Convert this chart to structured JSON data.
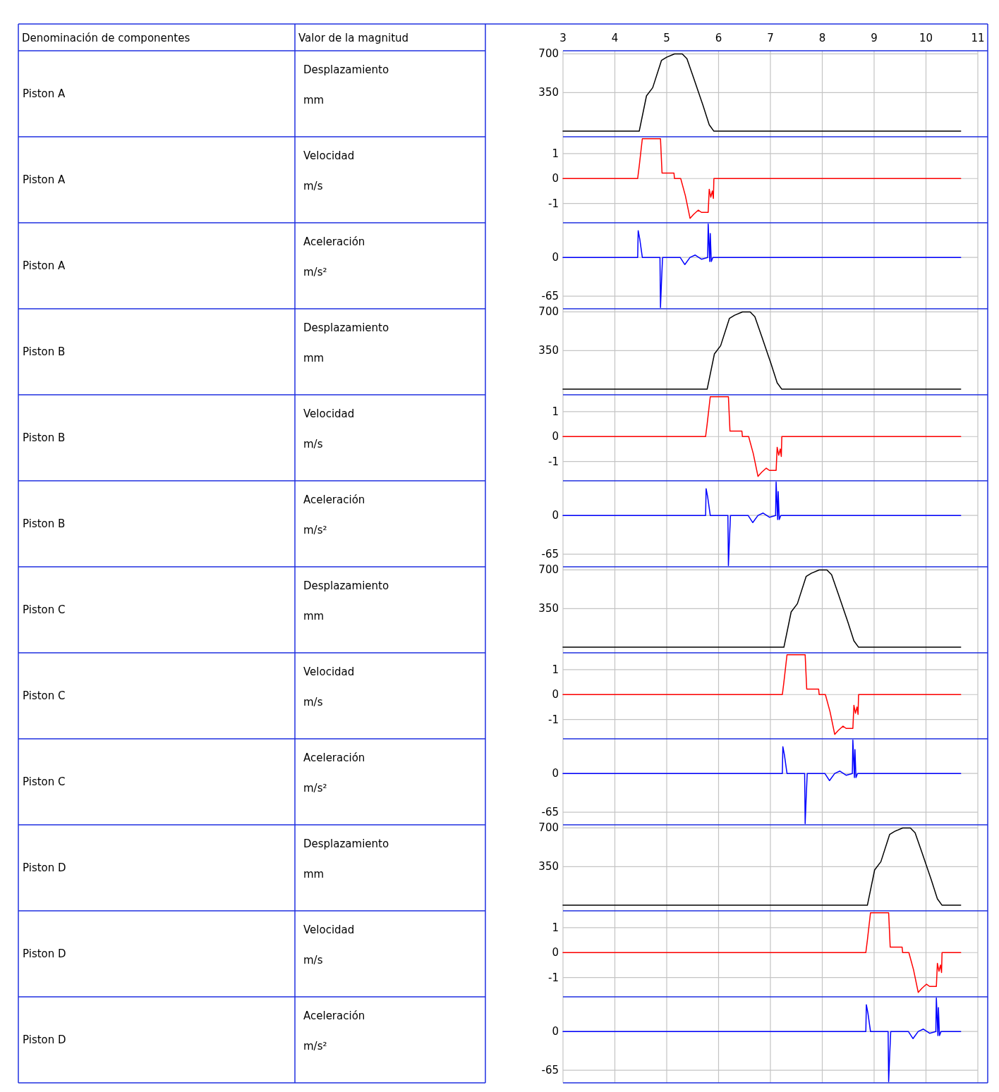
{
  "chart_data": [
    {
      "type": "other",
      "annotations": [
        "Denominación de componentes",
        "Valor de la magnitud",
        "Piston A",
        "Desplazamiento",
        "Piston A",
        "Velocidad",
        "Piston A",
        "Aceleración",
        "Piston B",
        "Desplazamiento",
        "Piston B",
        "Velocidad",
        "Piston B",
        "Aceleración",
        "Piston C",
        "Desplazamiento",
        "Piston C",
        "Velocidad",
        "Piston C",
        "Aceleración",
        "Piston D",
        "Desplazamiento",
        "Piston D",
        "Velocidad",
        "Piston D",
        "Aceleración"
      ]
    },
    {
      "type": "line",
      "ylabel": "mm",
      "xlim": [
        3,
        11
      ],
      "xticks": [
        3,
        4,
        5,
        6,
        7,
        8,
        9,
        10,
        11
      ],
      "ylim": [
        -44,
        722
      ],
      "yticks": [
        350,
        700
      ],
      "grid": true,
      "series": [
        {
          "color": "#000000",
          "x": [
            3,
            4.47,
            4.61,
            4.73,
            4.9,
            5.0,
            5.15,
            5.3,
            5.39,
            5.52,
            5.7,
            5.82,
            5.91,
            10.67
          ],
          "values": [
            0,
            0,
            320,
            394,
            642,
            670,
            700,
            700,
            656,
            481,
            233,
            58,
            0,
            0
          ]
        }
      ]
    },
    {
      "type": "line",
      "ylabel": "m/s",
      "xlim": [
        3,
        11
      ],
      "xticks": [
        3,
        4,
        5,
        6,
        7,
        8,
        9,
        10,
        11
      ],
      "ylim": [
        -1.75,
        1.65
      ],
      "yticks": [
        -1,
        0,
        1
      ],
      "grid": true,
      "tick_labels": "y",
      "series": [
        {
          "color": "#ff0000",
          "x": [
            3,
            4.44,
            4.47,
            4.53,
            4.88,
            4.91,
            5.14,
            5.15,
            5.27,
            5.36,
            5.45,
            5.52,
            5.61,
            5.67,
            5.8,
            5.82,
            5.85,
            5.88,
            5.9,
            5.91,
            10.67
          ],
          "values": [
            0,
            0,
            0.5,
            1.6,
            1.6,
            0.22,
            0.22,
            0,
            0,
            -0.69,
            -1.6,
            -1.44,
            -1.27,
            -1.36,
            -1.36,
            -0.43,
            -0.75,
            -0.5,
            -0.8,
            0,
            0
          ]
        }
      ]
    },
    {
      "type": "line",
      "ylabel": "m/s²",
      "xlim": [
        3,
        11
      ],
      "xticks": [
        3,
        4,
        5,
        6,
        7,
        8,
        9,
        10,
        11
      ],
      "ylim": [
        -85,
        57
      ],
      "yticks": [
        -65,
        0
      ],
      "grid": true,
      "tick_labels": "y",
      "series": [
        {
          "color": "#0000ff",
          "x": [
            3,
            4.44,
            4.45,
            4.48,
            4.53,
            4.87,
            4.88,
            4.9,
            4.92,
            5.26,
            5.35,
            5.45,
            5.55,
            5.67,
            5.79,
            5.8,
            5.83,
            5.84,
            5.86,
            5.89,
            10.67
          ],
          "values": [
            0,
            0,
            45,
            31,
            0,
            0,
            -84,
            -40,
            0,
            0,
            -12,
            0,
            4,
            -3,
            0,
            56,
            -7,
            40,
            -7,
            0,
            0
          ]
        }
      ]
    },
    {
      "type": "line",
      "ylabel": "mm",
      "xlim": [
        3,
        11
      ],
      "xticks": [
        3,
        4,
        5,
        6,
        7,
        8,
        9,
        10,
        11
      ],
      "ylim": [
        -44,
        722
      ],
      "yticks": [
        350,
        700
      ],
      "grid": true,
      "tick_labels": "y",
      "series": [
        {
          "color": "#000000",
          "x": [
            3,
            5.78,
            5.92,
            6.04,
            6.21,
            6.31,
            6.46,
            6.61,
            6.7,
            6.83,
            7.01,
            7.13,
            7.22,
            10.67
          ],
          "values": [
            0,
            0,
            320,
            394,
            642,
            670,
            700,
            700,
            656,
            481,
            233,
            58,
            0,
            0
          ]
        }
      ]
    },
    {
      "type": "line",
      "ylabel": "m/s",
      "xlim": [
        3,
        11
      ],
      "xticks": [
        3,
        4,
        5,
        6,
        7,
        8,
        9,
        10,
        11
      ],
      "ylim": [
        -1.75,
        1.65
      ],
      "yticks": [
        -1,
        0,
        1
      ],
      "grid": true,
      "tick_labels": "y",
      "series": [
        {
          "color": "#ff0000",
          "x": [
            3,
            5.75,
            5.78,
            5.84,
            6.19,
            6.22,
            6.45,
            6.46,
            6.58,
            6.67,
            6.76,
            6.83,
            6.92,
            6.98,
            7.11,
            7.13,
            7.16,
            7.19,
            7.21,
            7.22,
            10.67
          ],
          "values": [
            0,
            0,
            0.5,
            1.6,
            1.6,
            0.22,
            0.22,
            0,
            0,
            -0.69,
            -1.6,
            -1.44,
            -1.27,
            -1.36,
            -1.36,
            -0.43,
            -0.75,
            -0.5,
            -0.8,
            0,
            0
          ]
        }
      ]
    },
    {
      "type": "line",
      "ylabel": "m/s²",
      "xlim": [
        3,
        11
      ],
      "xticks": [
        3,
        4,
        5,
        6,
        7,
        8,
        9,
        10,
        11
      ],
      "ylim": [
        -85,
        57
      ],
      "yticks": [
        -65,
        0
      ],
      "grid": true,
      "tick_labels": "y",
      "series": [
        {
          "color": "#0000ff",
          "x": [
            3,
            5.75,
            5.76,
            5.79,
            5.84,
            6.18,
            6.19,
            6.21,
            6.23,
            6.57,
            6.66,
            6.76,
            6.86,
            6.98,
            7.1,
            7.11,
            7.14,
            7.15,
            7.17,
            7.2,
            10.67
          ],
          "values": [
            0,
            0,
            45,
            31,
            0,
            0,
            -84,
            -40,
            0,
            0,
            -12,
            0,
            4,
            -3,
            0,
            56,
            -7,
            40,
            -7,
            0,
            0
          ]
        }
      ]
    },
    {
      "type": "line",
      "ylabel": "mm",
      "xlim": [
        3,
        11
      ],
      "xticks": [
        3,
        4,
        5,
        6,
        7,
        8,
        9,
        10,
        11
      ],
      "ylim": [
        -44,
        722
      ],
      "yticks": [
        350,
        700
      ],
      "grid": true,
      "tick_labels": "y",
      "series": [
        {
          "color": "#000000",
          "x": [
            3,
            7.26,
            7.4,
            7.52,
            7.69,
            7.79,
            7.94,
            8.09,
            8.18,
            8.31,
            8.49,
            8.61,
            8.7,
            10.67
          ],
          "values": [
            0,
            0,
            320,
            394,
            642,
            670,
            700,
            700,
            656,
            481,
            233,
            58,
            0,
            0
          ]
        }
      ]
    },
    {
      "type": "line",
      "ylabel": "m/s",
      "xlim": [
        3,
        11
      ],
      "xticks": [
        3,
        4,
        5,
        6,
        7,
        8,
        9,
        10,
        11
      ],
      "ylim": [
        -1.75,
        1.65
      ],
      "yticks": [
        -1,
        0,
        1
      ],
      "grid": true,
      "tick_labels": "y",
      "series": [
        {
          "color": "#ff0000",
          "x": [
            3,
            7.23,
            7.26,
            7.32,
            7.67,
            7.7,
            7.93,
            7.94,
            8.06,
            8.15,
            8.24,
            8.31,
            8.4,
            8.46,
            8.59,
            8.61,
            8.64,
            8.67,
            8.69,
            8.7,
            10.67
          ],
          "values": [
            0,
            0,
            0.5,
            1.6,
            1.6,
            0.22,
            0.22,
            0,
            0,
            -0.69,
            -1.6,
            -1.44,
            -1.27,
            -1.36,
            -1.36,
            -0.43,
            -0.75,
            -0.5,
            -0.8,
            0,
            0
          ]
        }
      ]
    },
    {
      "type": "line",
      "ylabel": "m/s²",
      "xlim": [
        3,
        11
      ],
      "xticks": [
        3,
        4,
        5,
        6,
        7,
        8,
        9,
        10,
        11
      ],
      "ylim": [
        -85,
        57
      ],
      "yticks": [
        -65,
        0
      ],
      "grid": true,
      "tick_labels": "y",
      "series": [
        {
          "color": "#0000ff",
          "x": [
            3,
            7.23,
            7.24,
            7.27,
            7.32,
            7.66,
            7.67,
            7.69,
            7.71,
            8.05,
            8.14,
            8.24,
            8.34,
            8.46,
            8.58,
            8.59,
            8.62,
            8.63,
            8.65,
            8.68,
            10.67
          ],
          "values": [
            0,
            0,
            45,
            31,
            0,
            0,
            -84,
            -40,
            0,
            0,
            -12,
            0,
            4,
            -3,
            0,
            56,
            -7,
            40,
            -7,
            0,
            0
          ]
        }
      ]
    },
    {
      "type": "line",
      "ylabel": "mm",
      "xlim": [
        3,
        11
      ],
      "xticks": [
        3,
        4,
        5,
        6,
        7,
        8,
        9,
        10,
        11
      ],
      "ylim": [
        -44,
        722
      ],
      "yticks": [
        350,
        700
      ],
      "grid": true,
      "tick_labels": "y",
      "series": [
        {
          "color": "#000000",
          "x": [
            3,
            8.87,
            9.01,
            9.13,
            9.3,
            9.4,
            9.55,
            9.7,
            9.79,
            9.92,
            10.1,
            10.22,
            10.31,
            10.67
          ],
          "values": [
            0,
            0,
            320,
            394,
            642,
            670,
            700,
            700,
            656,
            481,
            233,
            58,
            0,
            0
          ]
        }
      ]
    },
    {
      "type": "line",
      "ylabel": "m/s",
      "xlim": [
        3,
        11
      ],
      "xticks": [
        3,
        4,
        5,
        6,
        7,
        8,
        9,
        10,
        11
      ],
      "ylim": [
        -1.75,
        1.65
      ],
      "yticks": [
        -1,
        0,
        1
      ],
      "grid": true,
      "tick_labels": "y",
      "series": [
        {
          "color": "#ff0000",
          "x": [
            3,
            8.84,
            8.87,
            8.93,
            9.28,
            9.31,
            9.54,
            9.55,
            9.67,
            9.76,
            9.85,
            9.92,
            10.01,
            10.07,
            10.2,
            10.22,
            10.25,
            10.28,
            10.3,
            10.31,
            10.67
          ],
          "values": [
            0,
            0,
            0.5,
            1.6,
            1.6,
            0.22,
            0.22,
            0,
            0,
            -0.69,
            -1.6,
            -1.44,
            -1.27,
            -1.36,
            -1.36,
            -0.43,
            -0.75,
            -0.5,
            -0.8,
            0,
            0
          ]
        }
      ]
    },
    {
      "type": "line",
      "ylabel": "m/s²",
      "xlim": [
        3,
        11
      ],
      "xticks": [
        3,
        4,
        5,
        6,
        7,
        8,
        9,
        10,
        11
      ],
      "ylim": [
        -85,
        57
      ],
      "yticks": [
        -65,
        0
      ],
      "grid": true,
      "tick_labels": "y",
      "series": [
        {
          "color": "#0000ff",
          "x": [
            3,
            8.84,
            8.85,
            8.88,
            8.93,
            9.27,
            9.28,
            9.3,
            9.32,
            9.66,
            9.75,
            9.85,
            9.95,
            10.07,
            10.19,
            10.2,
            10.23,
            10.24,
            10.26,
            10.29,
            10.67
          ],
          "values": [
            0,
            0,
            45,
            31,
            0,
            0,
            -84,
            -40,
            0,
            0,
            -12,
            0,
            4,
            -3,
            0,
            56,
            -7,
            40,
            -7,
            0,
            0
          ]
        }
      ]
    }
  ]
}
